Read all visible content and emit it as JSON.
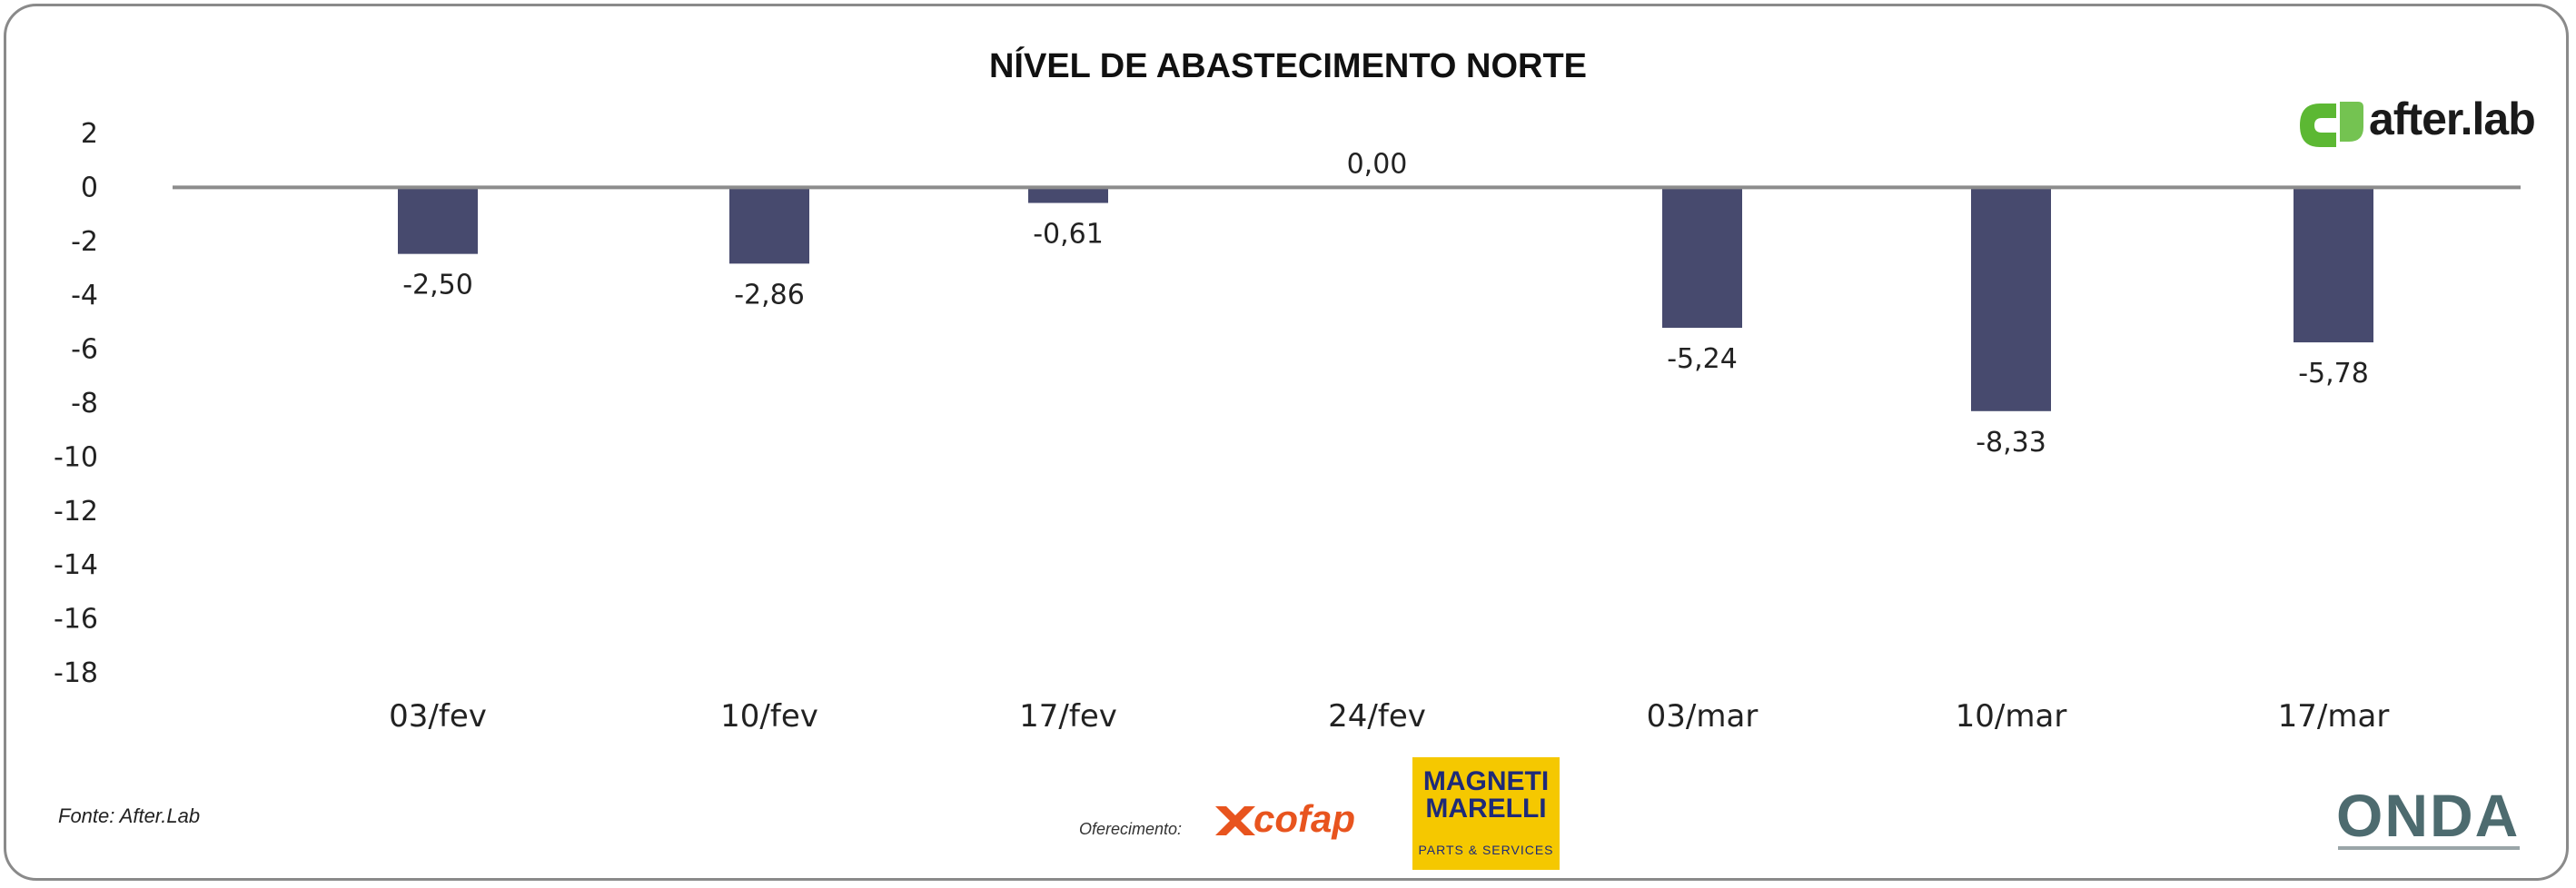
{
  "chart_data": {
    "type": "bar",
    "title": "NÍVEL DE ABASTECIMENTO NORTE",
    "categories": [
      "03/fev",
      "10/fev",
      "17/fev",
      "24/fev",
      "03/mar",
      "10/mar",
      "17/mar"
    ],
    "values": [
      -2.5,
      -2.86,
      -0.61,
      0.0,
      -5.24,
      -8.33,
      -5.78
    ],
    "value_labels": [
      "-2,50",
      "-2,86",
      "-0,61",
      "0,00",
      "-5,24",
      "-8,33",
      "-5,78"
    ],
    "y_ticks": [
      "2",
      "0",
      "-2",
      "-4",
      "-6",
      "-8",
      "-10",
      "-12",
      "-14",
      "-16",
      "-18"
    ],
    "ylim": [
      -18,
      2
    ],
    "bar_color": "#474a6e",
    "baseline_color": "#8c8c8c",
    "grid": false,
    "legend": "none"
  },
  "footer": {
    "source": "Fonte: After.Lab",
    "sponsor_label": "Oferecimento:"
  },
  "logos": {
    "brand": "after.lab",
    "brand_color": "#5cb833",
    "cofap": "cofap",
    "magneti_marelli": "MAGNETI\nMARELLI",
    "magneti_marelli_sub": "PARTS & SERVICES",
    "onda": "ONDA"
  }
}
